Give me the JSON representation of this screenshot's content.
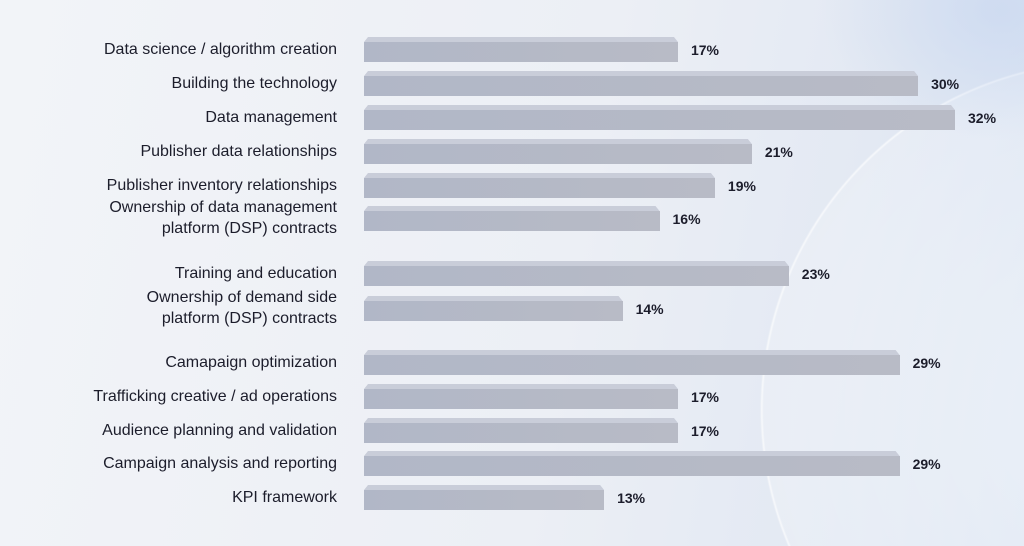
{
  "chart_data": {
    "type": "bar",
    "orientation": "horizontal",
    "categories": [
      "Data science / algorithm creation",
      "Building the technology",
      "Data management",
      "Publisher data relationships",
      "Publisher inventory relationships",
      "Ownership of data management\nplatform (DSP) contracts",
      "Training and education",
      "Ownership of demand side\nplatform (DSP) contracts",
      "Camapaign optimization",
      "Trafficking creative / ad operations",
      "Audience planning and validation",
      "Campaign analysis and reporting",
      "KPI framework"
    ],
    "values": [
      17,
      30,
      32,
      21,
      19,
      16,
      23,
      14,
      29,
      17,
      17,
      29,
      13
    ],
    "value_labels": [
      "17%",
      "30%",
      "32%",
      "21%",
      "19%",
      "16%",
      "23%",
      "14%",
      "29%",
      "17%",
      "17%",
      "29%",
      "13%"
    ],
    "unit": "%",
    "xlim": [
      0,
      32
    ],
    "grid": false,
    "colors": {
      "bar_front": "#b3b8c6",
      "bar_top": "#c9cdd9",
      "text": "#1c1d2b"
    }
  }
}
